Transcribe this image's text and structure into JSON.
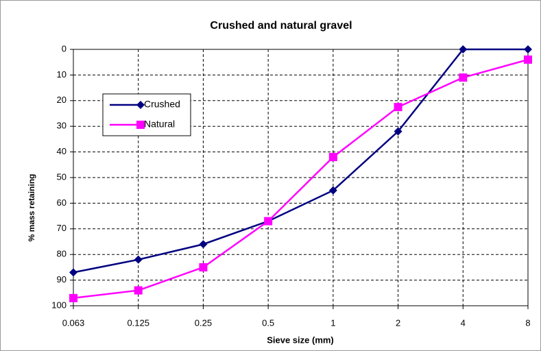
{
  "chart_data": {
    "type": "line",
    "title": "Crushed and natural gravel",
    "x_label": "Sieve size (mm)",
    "y_label": "% mass retaining",
    "categories": [
      "0.063",
      "0.125",
      "0.25",
      "0.5",
      "1",
      "2",
      "4",
      "8"
    ],
    "series": [
      {
        "name": "Crushed",
        "color": "#000080",
        "marker": "diamond",
        "values": [
          87,
          82,
          76,
          67,
          55,
          32,
          0,
          0
        ]
      },
      {
        "name": "Natural",
        "color": "#ff00ff",
        "marker": "square",
        "values": [
          97,
          94,
          85,
          67,
          42,
          22.5,
          11,
          4
        ]
      }
    ],
    "ylim": [
      0,
      100
    ],
    "y_inverted": true,
    "yticks": [
      0,
      10,
      20,
      30,
      40,
      50,
      60,
      70,
      80,
      90,
      100
    ],
    "grid": true,
    "legend": "upper left"
  }
}
